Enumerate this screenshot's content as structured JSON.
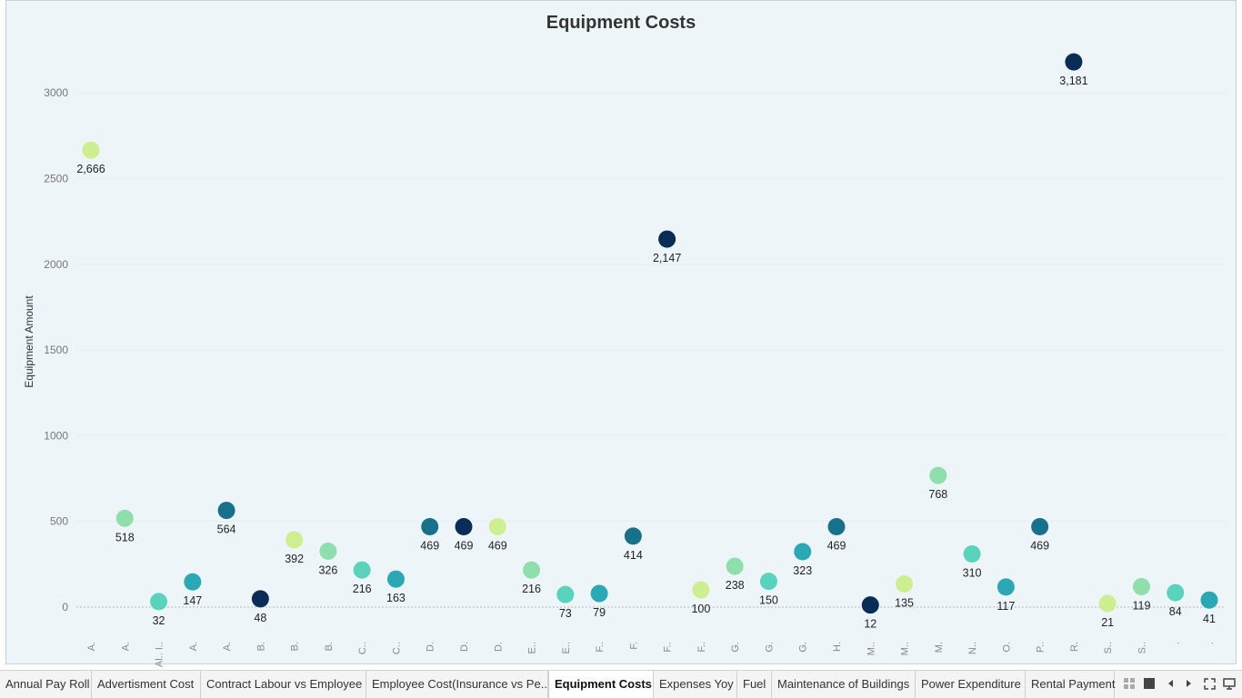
{
  "chart_data": {
    "type": "scatter",
    "title": "Equipment Costs",
    "xlabel": "",
    "ylabel": "Equipment Amount",
    "ylim": [
      -170,
      3330
    ],
    "yticks": [
      0,
      500,
      1000,
      1500,
      2000,
      2500,
      3000
    ],
    "grid": true,
    "categories": [
      "A.",
      "A.",
      "Al.. I..",
      "A.",
      "A.",
      "B.",
      "B.",
      "B.",
      "C..",
      "C..",
      "D.",
      "D.",
      "D.",
      "E..",
      "E..",
      "F..",
      "F.",
      "F..",
      "F..",
      "G.",
      "G.",
      "G.",
      "H.",
      "M..",
      "M..",
      "M.",
      "N..",
      "O.",
      "P..",
      "R.",
      "S..",
      "S..",
      ".",
      "."
    ],
    "values": [
      2666,
      518,
      32,
      147,
      564,
      48,
      392,
      326,
      216,
      163,
      469,
      469,
      469,
      216,
      73,
      79,
      414,
      2147,
      100,
      238,
      150,
      323,
      469,
      12,
      135,
      768,
      310,
      117,
      469,
      3181,
      21,
      119,
      84,
      41
    ],
    "labels": [
      "2,666",
      "518",
      "32",
      "147",
      "564",
      "48",
      "392",
      "326",
      "216",
      "163",
      "469",
      "469",
      "469",
      "216",
      "73",
      "79",
      "414",
      "2,147",
      "100",
      "238",
      "150",
      "323",
      "469",
      "12",
      "135",
      "768",
      "310",
      "117",
      "469",
      "3,181",
      "21",
      "119",
      "84",
      "41"
    ],
    "colors": [
      "#cdef8f",
      "#8fdfac",
      "#5ad3bd",
      "#2aa8b4",
      "#17718a",
      "#0a2d57",
      "#cdef8f",
      "#8fdfac",
      "#5ad3bd",
      "#2aa8b4",
      "#17718a",
      "#0a2d57",
      "#cdef8f",
      "#8fdfac",
      "#5ad3bd",
      "#2aa8b4",
      "#17718a",
      "#0a2d57",
      "#cdef8f",
      "#8fdfac",
      "#5ad3bd",
      "#2aa8b4",
      "#17718a",
      "#0a2d57",
      "#cdef8f",
      "#8fdfac",
      "#5ad3bd",
      "#2aa8b4",
      "#17718a",
      "#0a2d57",
      "#cdef8f",
      "#8fdfac",
      "#5ad3bd",
      "#2aa8b4"
    ]
  },
  "tabs": [
    {
      "label": "Annual Pay Roll",
      "active": false
    },
    {
      "label": "Advertisment Cost",
      "active": false
    },
    {
      "label": "Contract Labour vs Employee",
      "active": false
    },
    {
      "label": "Employee Cost(Insurance vs Pe...",
      "active": false
    },
    {
      "label": "Equipment Costs",
      "active": true
    },
    {
      "label": "Expenses Yoy",
      "active": false
    },
    {
      "label": "Fuel",
      "active": false
    },
    {
      "label": "Maintenance of Buildings",
      "active": false
    },
    {
      "label": "Power Expenditure",
      "active": false
    },
    {
      "label": "Rental Payment",
      "active": false
    }
  ],
  "controls": {
    "grid_icon": "grid-view-icon",
    "single_icon": "single-view-icon",
    "prev_icon": "prev-arrow-icon",
    "next_icon": "next-arrow-icon",
    "fullscreen_icon": "fullscreen-icon",
    "present_icon": "present-icon"
  }
}
